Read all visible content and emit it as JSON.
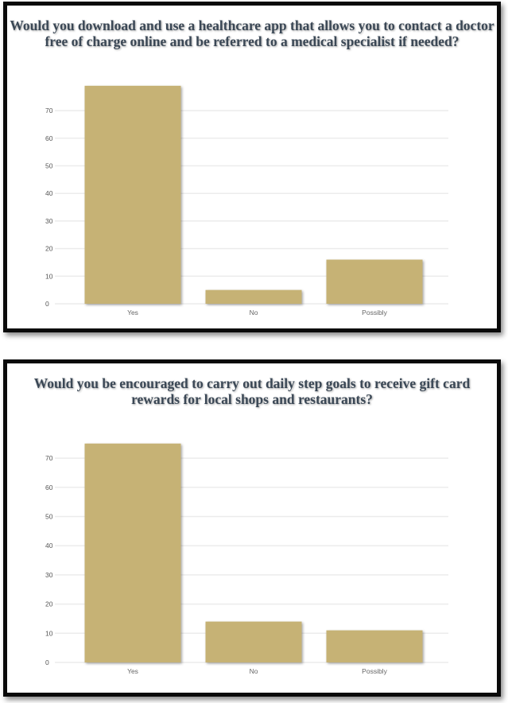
{
  "chart_data": [
    {
      "type": "bar",
      "title": "Would you download and use a healthcare app that allows you to contact a doctor free of charge online and be referred to a medical specialist if needed?",
      "categories": [
        "Yes",
        "No",
        "Possibly"
      ],
      "values": [
        79,
        5,
        16
      ],
      "ylim": [
        0,
        80
      ],
      "yticks": [
        0,
        10,
        20,
        30,
        40,
        50,
        60,
        70
      ],
      "grid": true,
      "bar_color": "#c6b274"
    },
    {
      "type": "bar",
      "title": "Would you be encouraged to carry out daily step goals to receive gift card rewards for local shops and restaurants?",
      "categories": [
        "Yes",
        "No",
        "Possibly"
      ],
      "values": [
        75,
        14,
        11
      ],
      "ylim": [
        0,
        80
      ],
      "yticks": [
        0,
        10,
        20,
        30,
        40,
        50,
        60,
        70
      ],
      "grid": true,
      "bar_color": "#c6b274"
    }
  ]
}
